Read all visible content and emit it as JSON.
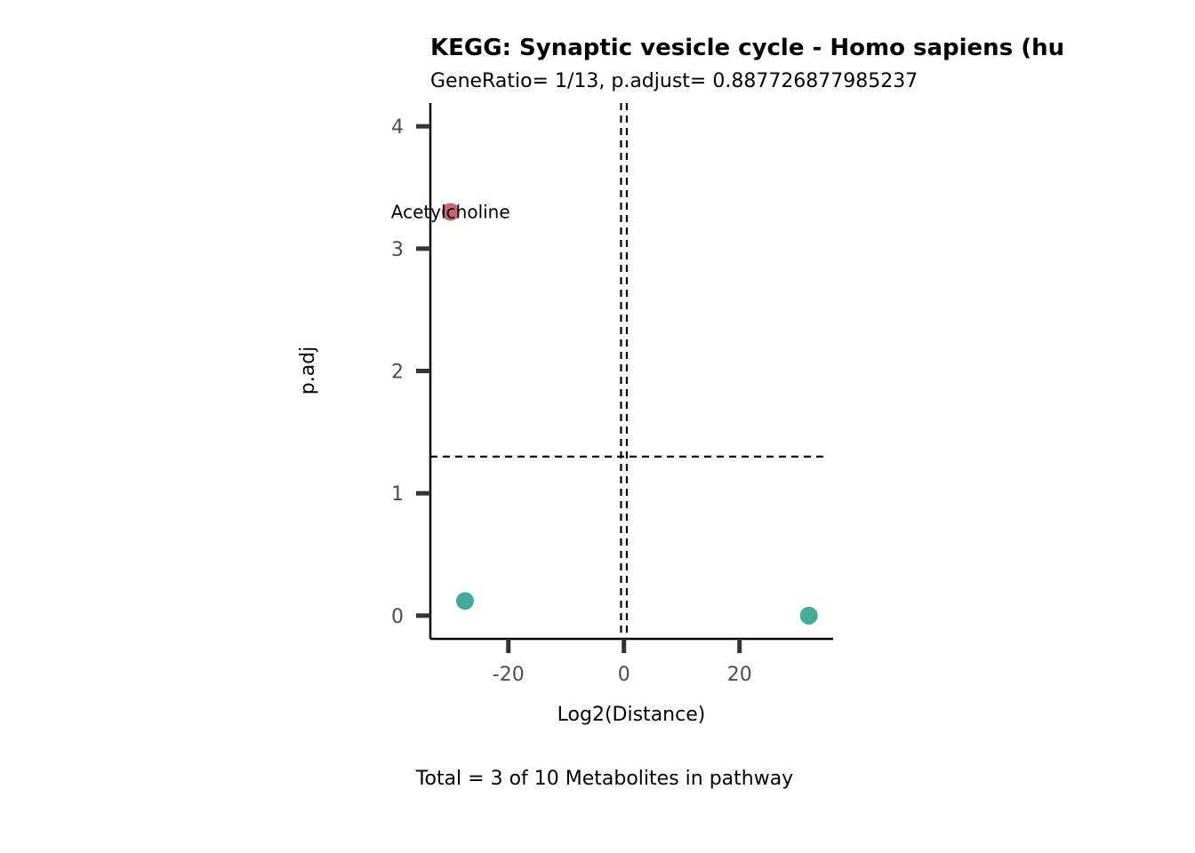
{
  "chart_data": {
    "type": "scatter",
    "title": "KEGG: Synaptic vesicle cycle - Homo sapiens (hu",
    "subtitle": "GeneRatio= 1/13, p.adjust= 0.887726877985237",
    "xlabel": "Log2(Distance)",
    "ylabel": "p.adj",
    "caption": "Total = 3 of 10 Metabolites in pathway",
    "xlim": [
      -33.5,
      36.2
    ],
    "ylim": [
      -0.19,
      4.19
    ],
    "x_ticks": [
      -20,
      0,
      20
    ],
    "x_tick_labels": [
      "-20",
      "0",
      "20"
    ],
    "y_ticks": [
      0,
      1,
      2,
      3,
      4
    ],
    "y_tick_labels": [
      "0",
      "1",
      "2",
      "3",
      "4"
    ],
    "vlines": [
      -0.5,
      0.5
    ],
    "hline": 1.3,
    "grid": false,
    "points": [
      {
        "x": -30.0,
        "y": 3.3,
        "color": "#cc6677",
        "label": "Acetylcholine"
      },
      {
        "x": -27.5,
        "y": 0.12,
        "color": "#44aa99",
        "label": ""
      },
      {
        "x": 32.0,
        "y": 0.0,
        "color": "#44aa99",
        "label": ""
      }
    ]
  }
}
